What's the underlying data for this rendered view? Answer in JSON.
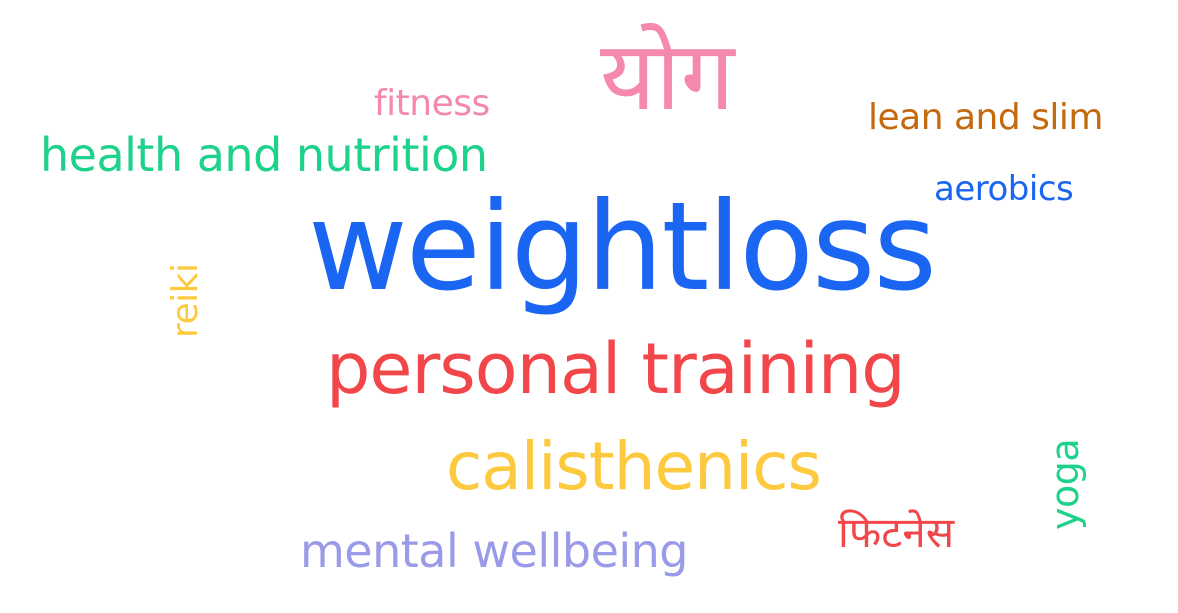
{
  "word_cloud": {
    "words": [
      {
        "text": "weightloss",
        "color": "#1a66f2"
      },
      {
        "text": "योग",
        "color": "#f489ad"
      },
      {
        "text": "personal training",
        "color": "#f2474a"
      },
      {
        "text": "calisthenics",
        "color": "#fdc93e"
      },
      {
        "text": "health and nutrition",
        "color": "#1dd28a"
      },
      {
        "text": "mental wellbeing",
        "color": "#9a9be8"
      },
      {
        "text": "lean and slim",
        "color": "#c3690e"
      },
      {
        "text": "fitness",
        "color": "#f489ad"
      },
      {
        "text": "aerobics",
        "color": "#1a66f2"
      },
      {
        "text": "फिटनेस",
        "color": "#f2474a"
      },
      {
        "text": "reiki",
        "color": "#fdc93e"
      },
      {
        "text": "yoga",
        "color": "#1dd28a"
      }
    ]
  }
}
